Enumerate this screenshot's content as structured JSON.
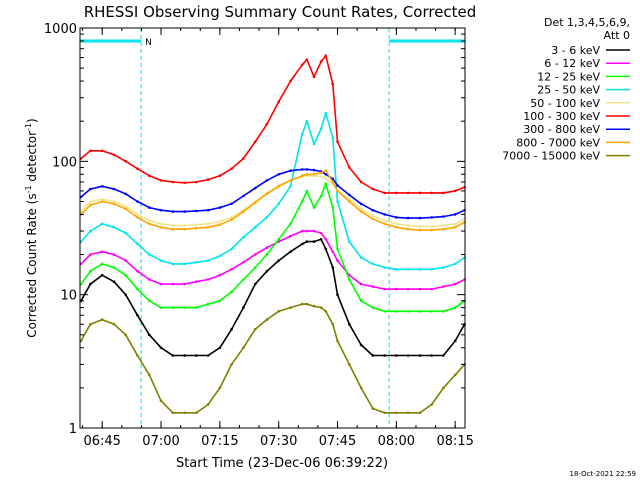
{
  "chart_data": {
    "type": "line",
    "title": "RHESSI Observing Summary Count Rates, Corrected",
    "xlabel": "Start Time (23-Dec-06 06:39:22)",
    "ylabel_main": "Corrected Count Rate (s",
    "ylabel_sup1": "-1",
    "ylabel_mid": " detector",
    "ylabel_sup2": "-1",
    "ylabel_end": ")",
    "yscale": "log",
    "ylim": [
      1,
      1000
    ],
    "xlim_min": [
      6.6556,
      8.2917
    ],
    "x_ticks": [
      {
        "value": 6.75,
        "label": "06:45"
      },
      {
        "value": 7.0,
        "label": "07:00"
      },
      {
        "value": 7.25,
        "label": "07:15"
      },
      {
        "value": 7.5,
        "label": "07:30"
      },
      {
        "value": 7.75,
        "label": "07:45"
      },
      {
        "value": 8.0,
        "label": "08:00"
      },
      {
        "value": 8.25,
        "label": "08:15"
      }
    ],
    "y_ticks": [
      {
        "value": 1,
        "label": "1"
      },
      {
        "value": 10,
        "label": "10"
      },
      {
        "value": 100,
        "label": "100"
      },
      {
        "value": 1000,
        "label": "1000"
      }
    ],
    "legend_header": [
      "Det 1,3,4,5,6,9,",
      "Att 0"
    ],
    "legend_position": "right",
    "night_intervals_hours": [
      [
        6.6556,
        6.9153
      ],
      [
        7.9694,
        8.2917
      ]
    ],
    "flag_label": "N",
    "flag_color": "#00e5ee",
    "footer_date": "18-Oct-2021 22:59",
    "x_hours": [
      6.66,
      6.7,
      6.75,
      6.8,
      6.85,
      6.9,
      6.95,
      7.0,
      7.05,
      7.1,
      7.15,
      7.2,
      7.25,
      7.3,
      7.35,
      7.4,
      7.45,
      7.5,
      7.55,
      7.6,
      7.62,
      7.65,
      7.68,
      7.7,
      7.73,
      7.75,
      7.8,
      7.85,
      7.9,
      7.95,
      8.0,
      8.05,
      8.1,
      8.15,
      8.2,
      8.25,
      8.29
    ],
    "series": [
      {
        "name": "3 - 6 keV",
        "color": "#000000",
        "values": [
          9.0,
          12.0,
          14.0,
          12.5,
          10.0,
          7.0,
          5.0,
          4.0,
          3.5,
          3.5,
          3.5,
          3.5,
          4.0,
          5.5,
          8.0,
          12.0,
          15.0,
          18.0,
          21.0,
          24.0,
          25.0,
          25.0,
          26.0,
          22.0,
          16.0,
          10.0,
          6.0,
          4.2,
          3.5,
          3.5,
          3.5,
          3.5,
          3.5,
          3.5,
          3.5,
          4.5,
          6.0
        ]
      },
      {
        "name": "6 - 12 keV",
        "color": "#ff00ff",
        "values": [
          17.0,
          20.0,
          21.0,
          20.0,
          18.0,
          15.0,
          13.0,
          12.0,
          12.0,
          12.0,
          12.5,
          13.0,
          14.0,
          15.5,
          17.5,
          20.0,
          22.5,
          25.0,
          27.5,
          30.0,
          30.0,
          30.0,
          29.0,
          26.0,
          21.0,
          18.0,
          14.0,
          12.0,
          11.5,
          11.0,
          11.0,
          11.0,
          11.0,
          11.0,
          11.5,
          12.0,
          13.0
        ]
      },
      {
        "name": "12 - 25 keV",
        "color": "#00ff00",
        "values": [
          12.0,
          15.0,
          17.0,
          16.0,
          14.0,
          11.0,
          9.0,
          8.0,
          8.0,
          8.0,
          8.0,
          8.5,
          9.0,
          10.5,
          13.0,
          16.0,
          20.0,
          26.0,
          34.0,
          50.0,
          60.0,
          45.0,
          55.0,
          68.0,
          45.0,
          22.0,
          13.0,
          9.0,
          8.0,
          7.5,
          7.5,
          7.5,
          7.5,
          7.5,
          7.5,
          8.0,
          9.0
        ]
      },
      {
        "name": "25 - 50 keV",
        "color": "#00e5ee",
        "values": [
          25.0,
          30.0,
          34.0,
          32.0,
          29.0,
          24.0,
          20.0,
          18.0,
          17.0,
          17.0,
          17.5,
          18.0,
          19.5,
          22.0,
          27.0,
          32.0,
          38.0,
          48.0,
          65.0,
          160.0,
          200.0,
          135.0,
          175.0,
          230.0,
          150.0,
          50.0,
          25.0,
          19.0,
          17.0,
          16.0,
          15.5,
          15.5,
          15.5,
          15.5,
          16.0,
          17.0,
          19.0
        ]
      },
      {
        "name": "50 - 100 keV",
        "color": "#f0e68c",
        "values": [
          42.0,
          50.0,
          52.0,
          50.0,
          46.0,
          40.0,
          36.0,
          34.0,
          33.0,
          33.0,
          33.5,
          34.0,
          35.5,
          38.0,
          43.0,
          50.0,
          58.0,
          66.0,
          72.0,
          77.0,
          78.0,
          78.0,
          77.0,
          74.0,
          68.0,
          60.0,
          52.0,
          44.0,
          39.0,
          36.0,
          34.0,
          33.0,
          32.5,
          32.5,
          33.0,
          34.0,
          37.0
        ]
      },
      {
        "name": "100 - 300 keV",
        "color": "#ff0000",
        "values": [
          105.0,
          120.0,
          120.0,
          112.0,
          100.0,
          88.0,
          78.0,
          72.0,
          70.0,
          69.0,
          70.0,
          73.0,
          78.0,
          88.0,
          105.0,
          140.0,
          190.0,
          280.0,
          400.0,
          530.0,
          580.0,
          430.0,
          560.0,
          620.0,
          380.0,
          140.0,
          90.0,
          70.0,
          62.0,
          58.0,
          58.0,
          58.0,
          58.0,
          58.0,
          58.0,
          60.0,
          64.0
        ]
      },
      {
        "name": "300 - 800 keV",
        "color": "#0000ff",
        "values": [
          54.0,
          62.0,
          65.0,
          62.0,
          57.0,
          50.0,
          45.0,
          43.0,
          42.0,
          42.0,
          42.5,
          43.0,
          45.0,
          48.0,
          55.0,
          63.0,
          72.0,
          80.0,
          85.0,
          87.0,
          87.0,
          86.0,
          84.0,
          80.0,
          74.0,
          66.0,
          56.0,
          48.0,
          43.0,
          40.0,
          38.0,
          37.5,
          37.5,
          38.0,
          38.5,
          40.0,
          43.0
        ]
      },
      {
        "name": "800 - 7000 keV",
        "color": "#ffa500",
        "values": [
          40.0,
          47.0,
          50.0,
          48.0,
          44.0,
          38.0,
          34.0,
          32.0,
          31.0,
          31.0,
          31.5,
          32.0,
          33.5,
          36.5,
          42.0,
          49.0,
          57.0,
          65.0,
          72.0,
          78.0,
          80.0,
          80.0,
          82.0,
          85.0,
          70.0,
          60.0,
          50.0,
          42.0,
          37.0,
          34.0,
          32.0,
          31.0,
          30.5,
          30.5,
          31.0,
          32.0,
          35.0
        ]
      },
      {
        "name": "7000 - 15000 keV",
        "color": "#808000",
        "values": [
          4.5,
          6.0,
          6.5,
          6.0,
          5.0,
          3.5,
          2.5,
          1.6,
          1.3,
          1.3,
          1.3,
          1.5,
          2.0,
          3.0,
          4.0,
          5.5,
          6.5,
          7.5,
          8.0,
          8.5,
          8.5,
          8.2,
          8.0,
          7.5,
          6.0,
          4.5,
          3.0,
          2.0,
          1.4,
          1.3,
          1.3,
          1.3,
          1.3,
          1.5,
          2.0,
          2.5,
          3.0
        ]
      }
    ]
  }
}
